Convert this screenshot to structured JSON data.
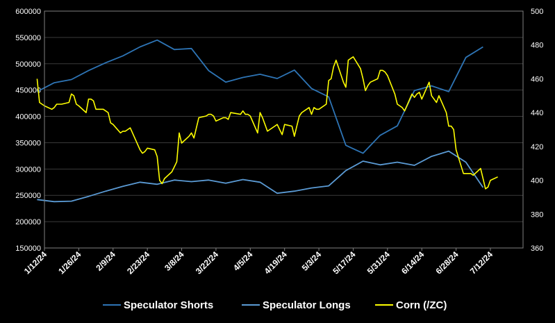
{
  "chart_data": {
    "type": "line",
    "title": "",
    "xlabel": "",
    "ylabel": "",
    "y2label": "",
    "x_ticks": [
      "1/12/24",
      "1/26/24",
      "2/9/24",
      "2/23/24",
      "3/8/24",
      "3/22/24",
      "4/5/24",
      "4/19/24",
      "5/3/24",
      "5/17/24",
      "5/31/24",
      "6/14/24",
      "6/28/24",
      "7/12/24"
    ],
    "ylim": [
      150000,
      600000
    ],
    "y_ticks": [
      150000,
      200000,
      250000,
      300000,
      350000,
      400000,
      450000,
      500000,
      550000,
      600000
    ],
    "y_tick_labels": [
      "150000",
      "200000",
      "250000",
      "300000",
      "350000",
      "400000",
      "450000",
      "500000",
      "550000",
      "600000"
    ],
    "y2lim": [
      360,
      500
    ],
    "y2_ticks": [
      360,
      380,
      400,
      420,
      440,
      460,
      480,
      500
    ],
    "y2_tick_labels": [
      "360",
      "380",
      "400",
      "420",
      "440",
      "460",
      "480",
      "500"
    ],
    "grid": "horizontal",
    "legend_position": "bottom",
    "series": [
      {
        "name": "Speculator Shorts",
        "axis": "left",
        "color": "#2E75B6",
        "points": [
          [
            "2024-01-09",
            447000
          ],
          [
            "2024-01-16",
            464000
          ],
          [
            "2024-01-23",
            470000
          ],
          [
            "2024-01-30",
            487000
          ],
          [
            "2024-02-06",
            502000
          ],
          [
            "2024-02-13",
            515000
          ],
          [
            "2024-02-20",
            532000
          ],
          [
            "2024-02-27",
            545000
          ],
          [
            "2024-03-05",
            527000
          ],
          [
            "2024-03-12",
            529000
          ],
          [
            "2024-03-19",
            487000
          ],
          [
            "2024-03-26",
            465000
          ],
          [
            "2024-04-02",
            474000
          ],
          [
            "2024-04-09",
            480000
          ],
          [
            "2024-04-16",
            472000
          ],
          [
            "2024-04-23",
            488000
          ],
          [
            "2024-04-30",
            453000
          ],
          [
            "2024-05-07",
            437000
          ],
          [
            "2024-05-14",
            345000
          ],
          [
            "2024-05-21",
            330000
          ],
          [
            "2024-05-28",
            364000
          ],
          [
            "2024-06-04",
            382000
          ],
          [
            "2024-06-11",
            449000
          ],
          [
            "2024-06-18",
            458000
          ],
          [
            "2024-06-25",
            447000
          ],
          [
            "2024-07-02",
            512000
          ],
          [
            "2024-07-09",
            532000
          ]
        ]
      },
      {
        "name": "Speculator Longs",
        "axis": "left",
        "color": "#5B9BD5",
        "points": [
          [
            "2024-01-09",
            242000
          ],
          [
            "2024-01-16",
            238000
          ],
          [
            "2024-01-23",
            239000
          ],
          [
            "2024-01-30",
            248000
          ],
          [
            "2024-02-06",
            258000
          ],
          [
            "2024-02-13",
            267000
          ],
          [
            "2024-02-20",
            275000
          ],
          [
            "2024-02-27",
            271000
          ],
          [
            "2024-03-05",
            279000
          ],
          [
            "2024-03-12",
            276000
          ],
          [
            "2024-03-19",
            279000
          ],
          [
            "2024-03-26",
            273000
          ],
          [
            "2024-04-02",
            280000
          ],
          [
            "2024-04-09",
            275000
          ],
          [
            "2024-04-16",
            254000
          ],
          [
            "2024-04-23",
            258000
          ],
          [
            "2024-04-30",
            264000
          ],
          [
            "2024-05-07",
            268000
          ],
          [
            "2024-05-14",
            297000
          ],
          [
            "2024-05-21",
            315000
          ],
          [
            "2024-05-28",
            308000
          ],
          [
            "2024-06-04",
            313000
          ],
          [
            "2024-06-11",
            307000
          ],
          [
            "2024-06-18",
            324000
          ],
          [
            "2024-06-25",
            334000
          ],
          [
            "2024-07-02",
            313000
          ],
          [
            "2024-07-09",
            265000
          ]
        ]
      },
      {
        "name": "Corn (/ZC)",
        "axis": "right",
        "color": "#FFFF00",
        "points": [
          [
            "2024-01-09",
            460
          ],
          [
            "2024-01-10",
            446
          ],
          [
            "2024-01-11",
            445
          ],
          [
            "2024-01-12",
            444
          ],
          [
            "2024-01-15",
            442
          ],
          [
            "2024-01-16",
            443
          ],
          [
            "2024-01-17",
            445
          ],
          [
            "2024-01-18",
            445
          ],
          [
            "2024-01-19",
            445
          ],
          [
            "2024-01-22",
            446
          ],
          [
            "2024-01-23",
            451
          ],
          [
            "2024-01-24",
            450
          ],
          [
            "2024-01-25",
            445
          ],
          [
            "2024-01-26",
            444
          ],
          [
            "2024-01-29",
            440
          ],
          [
            "2024-01-30",
            448
          ],
          [
            "2024-01-31",
            448
          ],
          [
            "2024-02-01",
            447
          ],
          [
            "2024-02-02",
            442
          ],
          [
            "2024-02-05",
            442
          ],
          [
            "2024-02-06",
            441
          ],
          [
            "2024-02-07",
            440
          ],
          [
            "2024-02-08",
            434
          ],
          [
            "2024-02-09",
            433
          ],
          [
            "2024-02-12",
            428
          ],
          [
            "2024-02-13",
            429
          ],
          [
            "2024-02-14",
            429
          ],
          [
            "2024-02-15",
            430
          ],
          [
            "2024-02-16",
            431
          ],
          [
            "2024-02-20",
            418
          ],
          [
            "2024-02-21",
            416
          ],
          [
            "2024-02-22",
            417
          ],
          [
            "2024-02-23",
            419
          ],
          [
            "2024-02-26",
            418
          ],
          [
            "2024-02-27",
            414
          ],
          [
            "2024-02-28",
            400
          ],
          [
            "2024-02-29",
            398
          ],
          [
            "2024-03-01",
            401
          ],
          [
            "2024-03-04",
            405
          ],
          [
            "2024-03-05",
            408
          ],
          [
            "2024-03-06",
            411
          ],
          [
            "2024-03-07",
            428
          ],
          [
            "2024-03-08",
            422
          ],
          [
            "2024-03-11",
            426
          ],
          [
            "2024-03-12",
            428
          ],
          [
            "2024-03-13",
            425
          ],
          [
            "2024-03-14",
            431
          ],
          [
            "2024-03-15",
            437
          ],
          [
            "2024-03-18",
            438
          ],
          [
            "2024-03-19",
            439
          ],
          [
            "2024-03-20",
            439
          ],
          [
            "2024-03-21",
            438
          ],
          [
            "2024-03-22",
            435
          ],
          [
            "2024-03-25",
            437
          ],
          [
            "2024-03-26",
            437
          ],
          [
            "2024-03-27",
            436
          ],
          [
            "2024-03-28",
            440
          ],
          [
            "2024-04-01",
            439
          ],
          [
            "2024-04-02",
            441
          ],
          [
            "2024-04-03",
            439
          ],
          [
            "2024-04-04",
            439
          ],
          [
            "2024-04-05",
            438
          ],
          [
            "2024-04-08",
            428
          ],
          [
            "2024-04-09",
            440
          ],
          [
            "2024-04-10",
            437
          ],
          [
            "2024-04-11",
            433
          ],
          [
            "2024-04-12",
            429
          ],
          [
            "2024-04-15",
            432
          ],
          [
            "2024-04-16",
            433
          ],
          [
            "2024-04-17",
            430
          ],
          [
            "2024-04-18",
            427
          ],
          [
            "2024-04-19",
            433
          ],
          [
            "2024-04-22",
            432
          ],
          [
            "2024-04-23",
            426
          ],
          [
            "2024-04-24",
            432
          ],
          [
            "2024-04-25",
            438
          ],
          [
            "2024-04-26",
            440
          ],
          [
            "2024-04-29",
            443
          ],
          [
            "2024-04-30",
            439
          ],
          [
            "2024-05-01",
            443
          ],
          [
            "2024-05-02",
            442
          ],
          [
            "2024-05-03",
            442
          ],
          [
            "2024-05-06",
            445
          ],
          [
            "2024-05-07",
            459
          ],
          [
            "2024-05-08",
            460
          ],
          [
            "2024-05-09",
            467
          ],
          [
            "2024-05-10",
            471
          ],
          [
            "2024-05-13",
            458
          ],
          [
            "2024-05-14",
            455
          ],
          [
            "2024-05-15",
            471
          ],
          [
            "2024-05-16",
            472
          ],
          [
            "2024-05-17",
            473
          ],
          [
            "2024-05-20",
            466
          ],
          [
            "2024-05-21",
            460
          ],
          [
            "2024-05-22",
            453
          ],
          [
            "2024-05-23",
            456
          ],
          [
            "2024-05-24",
            458
          ],
          [
            "2024-05-27",
            460
          ],
          [
            "2024-05-28",
            465
          ],
          [
            "2024-05-29",
            465
          ],
          [
            "2024-05-30",
            464
          ],
          [
            "2024-05-31",
            462
          ],
          [
            "2024-06-03",
            451
          ],
          [
            "2024-06-04",
            445
          ],
          [
            "2024-06-05",
            444
          ],
          [
            "2024-06-06",
            443
          ],
          [
            "2024-06-07",
            441
          ],
          [
            "2024-06-10",
            451
          ],
          [
            "2024-06-11",
            449
          ],
          [
            "2024-06-12",
            451
          ],
          [
            "2024-06-13",
            452
          ],
          [
            "2024-06-14",
            448
          ],
          [
            "2024-06-17",
            458
          ],
          [
            "2024-06-18",
            450
          ],
          [
            "2024-06-19",
            448
          ],
          [
            "2024-06-20",
            446
          ],
          [
            "2024-06-21",
            450
          ],
          [
            "2024-06-24",
            440
          ],
          [
            "2024-06-25",
            432
          ],
          [
            "2024-06-26",
            432
          ],
          [
            "2024-06-27",
            430
          ],
          [
            "2024-06-28",
            418
          ],
          [
            "2024-07-01",
            404
          ],
          [
            "2024-07-02",
            404
          ],
          [
            "2024-07-03",
            404
          ],
          [
            "2024-07-04",
            404
          ],
          [
            "2024-07-05",
            403
          ],
          [
            "2024-07-08",
            407
          ],
          [
            "2024-07-09",
            401
          ],
          [
            "2024-07-10",
            395
          ],
          [
            "2024-07-11",
            396
          ],
          [
            "2024-07-12",
            400
          ],
          [
            "2024-07-15",
            402
          ]
        ]
      }
    ]
  }
}
